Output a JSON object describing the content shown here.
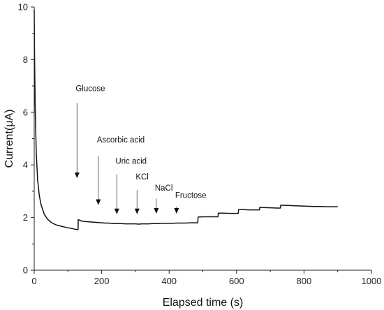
{
  "chart_data": {
    "type": "line",
    "title": "",
    "xlabel": "Elapsed time (s)",
    "ylabel": "Current(μA)",
    "xlim": [
      0,
      1000
    ],
    "ylim": [
      0,
      10
    ],
    "xticks": [
      0,
      200,
      400,
      600,
      800,
      1000
    ],
    "yticks": [
      0,
      2,
      4,
      6,
      8,
      10
    ],
    "grid": false,
    "legend": "none",
    "colors": {
      "line": "#111111",
      "axis": "#222222",
      "arrow": "#666666"
    },
    "series": [
      {
        "x": [
          0,
          1,
          3,
          6,
          10,
          15,
          20,
          30,
          40,
          50,
          60,
          70,
          80,
          90,
          100,
          110,
          120,
          130,
          130.5,
          140,
          150,
          160,
          170,
          180,
          190,
          200,
          210,
          220,
          230,
          240,
          250,
          260,
          270,
          280,
          290,
          300,
          310,
          320,
          330,
          340,
          350,
          360,
          370,
          380,
          390,
          400,
          410,
          420,
          430,
          440,
          450,
          460,
          470,
          480,
          485,
          486,
          500,
          520,
          540,
          545,
          546,
          560,
          580,
          600,
          605,
          606,
          620,
          640,
          660,
          668,
          669,
          680,
          700,
          720,
          730,
          731,
          750,
          770,
          790,
          810,
          830,
          850,
          870,
          900
        ],
        "y": [
          9.9,
          8.2,
          6.1,
          4.5,
          3.45,
          2.85,
          2.5,
          2.12,
          1.93,
          1.82,
          1.75,
          1.7,
          1.67,
          1.64,
          1.61,
          1.59,
          1.56,
          1.54,
          1.92,
          1.87,
          1.85,
          1.84,
          1.83,
          1.82,
          1.81,
          1.8,
          1.79,
          1.79,
          1.78,
          1.77,
          1.77,
          1.77,
          1.76,
          1.76,
          1.76,
          1.76,
          1.75,
          1.76,
          1.76,
          1.76,
          1.77,
          1.77,
          1.77,
          1.78,
          1.78,
          1.78,
          1.78,
          1.79,
          1.79,
          1.79,
          1.79,
          1.8,
          1.8,
          1.8,
          1.8,
          2.02,
          2.03,
          2.03,
          2.03,
          2.03,
          2.17,
          2.17,
          2.16,
          2.16,
          2.16,
          2.3,
          2.3,
          2.29,
          2.29,
          2.29,
          2.39,
          2.38,
          2.37,
          2.36,
          2.36,
          2.47,
          2.46,
          2.45,
          2.44,
          2.43,
          2.42,
          2.42,
          2.41,
          2.41
        ]
      }
    ],
    "annotations": [
      {
        "label": "Glucose",
        "x": 127,
        "label_y": 6.8,
        "arrow_top": 6.35,
        "arrow_bottom": 3.3
      },
      {
        "label": "Ascorbic acid",
        "x": 190,
        "label_y": 4.85,
        "arrow_top": 4.35,
        "arrow_bottom": 2.28
      },
      {
        "label": "Uric acid",
        "x": 245,
        "label_y": 4.05,
        "arrow_top": 3.65,
        "arrow_bottom": 1.93
      },
      {
        "label": "KCl",
        "x": 305,
        "label_y": 3.45,
        "arrow_top": 3.05,
        "arrow_bottom": 1.93
      },
      {
        "label": "NaCl",
        "x": 362,
        "label_y": 3.02,
        "arrow_top": 2.72,
        "arrow_bottom": 1.95
      },
      {
        "label": "Fructose",
        "x": 422,
        "label_y": 2.75,
        "arrow_top": 2.42,
        "arrow_bottom": 1.95
      }
    ]
  }
}
